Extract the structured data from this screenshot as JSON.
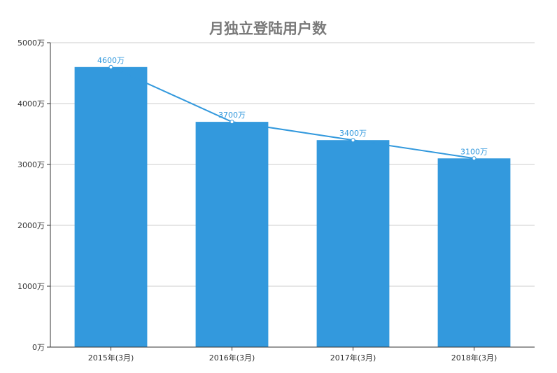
{
  "chart_data": {
    "type": "bar",
    "title": "月独立登陆用户数",
    "categories": [
      "2015年(3月)",
      "2016年(3月)",
      "2017年(3月)",
      "2018年(3月)"
    ],
    "values": [
      4600,
      3700,
      3400,
      3100
    ],
    "data_labels": [
      "4600万",
      "3700万",
      "3400万",
      "3100万"
    ],
    "overlay_line": true,
    "ylim": [
      0,
      5000
    ],
    "yticks": [
      0,
      1000,
      2000,
      3000,
      4000,
      5000
    ],
    "ytick_labels": [
      "0万",
      "1000万",
      "2000万",
      "3000万",
      "4000万",
      "5000万"
    ],
    "grid": true,
    "legend": "none",
    "colors": {
      "bar": "#3399dd",
      "line": "#3399dd",
      "label": "#3399dd",
      "grid": "#cccccc",
      "title": "#7a7a7a"
    }
  }
}
